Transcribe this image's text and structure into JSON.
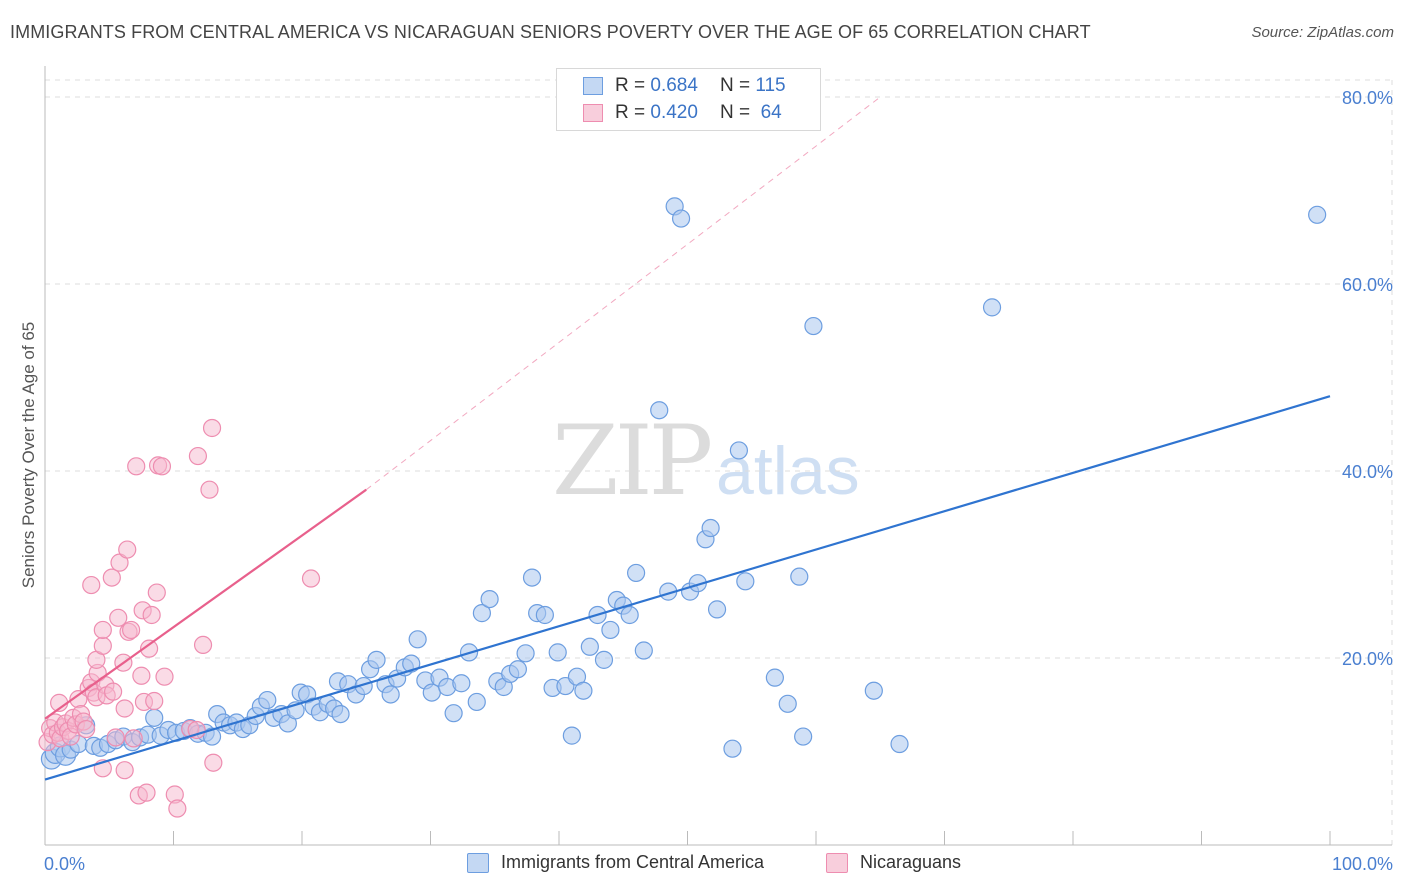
{
  "title": "IMMIGRANTS FROM CENTRAL AMERICA VS NICARAGUAN SENIORS POVERTY OVER THE AGE OF 65 CORRELATION CHART",
  "source": "Source: ZipAtlas.com",
  "watermark": {
    "zip": "ZIP",
    "atlas": "atlas"
  },
  "legend": {
    "rows": [
      {
        "r_label": "R =",
        "r_value": "0.684",
        "n_label": "N =",
        "n_value": "115"
      },
      {
        "r_label": "R =",
        "r_value": "0.420",
        "n_label": "N =",
        "n_value": "64"
      }
    ]
  },
  "bottom_legend": {
    "series1": "Immigrants from Central America",
    "series2": "Nicaraguans"
  },
  "colors": {
    "blue_fill": "#a9c7ef",
    "blue_stroke": "#6d9ee0",
    "blue_line": "#2f74d0",
    "pink_fill": "#f6b8cd",
    "pink_stroke": "#ee8db0",
    "pink_line": "#e8608c",
    "tick_text": "#4a7fd0",
    "grid": "#dddddd"
  },
  "chart_data": {
    "type": "scatter",
    "title": "IMMIGRANTS FROM CENTRAL AMERICA VS NICARAGUAN SENIORS POVERTY OVER THE AGE OF 65 CORRELATION CHART",
    "xlabel": "",
    "ylabel": "Seniors Poverty Over the Age of 65",
    "xlim": [
      0,
      100
    ],
    "ylim": [
      0,
      80
    ],
    "x_tick_labels": [
      "0.0%",
      "100.0%"
    ],
    "y_ticks": [
      20,
      40,
      60,
      80
    ],
    "y_tick_labels": [
      "20.0%",
      "40.0%",
      "60.0%",
      "80.0%"
    ],
    "grid": true,
    "legend_position": "top-center",
    "series": [
      {
        "name": "Immigrants from Central America",
        "r": 0.684,
        "n": 115,
        "trend": {
          "x0": 0,
          "y0": 7.0,
          "x1": 100,
          "y1": 48.0
        },
        "points": [
          [
            0.5,
            9.2
          ],
          [
            0.8,
            9.8
          ],
          [
            1.2,
            10.5
          ],
          [
            1.6,
            9.6
          ],
          [
            2.0,
            10.2
          ],
          [
            2.6,
            10.8
          ],
          [
            3.2,
            12.8
          ],
          [
            3.8,
            10.6
          ],
          [
            4.3,
            10.4
          ],
          [
            4.9,
            10.8
          ],
          [
            5.5,
            11.2
          ],
          [
            6.1,
            11.6
          ],
          [
            6.8,
            11.0
          ],
          [
            7.4,
            11.5
          ],
          [
            8.0,
            11.8
          ],
          [
            8.5,
            13.6
          ],
          [
            9.0,
            11.7
          ],
          [
            9.6,
            12.3
          ],
          [
            10.2,
            12.0
          ],
          [
            10.8,
            12.2
          ],
          [
            11.3,
            12.5
          ],
          [
            11.9,
            11.9
          ],
          [
            12.5,
            12.0
          ],
          [
            13.0,
            11.6
          ],
          [
            13.4,
            14.0
          ],
          [
            13.9,
            13.1
          ],
          [
            14.4,
            12.8
          ],
          [
            14.9,
            13.1
          ],
          [
            15.4,
            12.4
          ],
          [
            15.9,
            12.8
          ],
          [
            16.4,
            13.8
          ],
          [
            16.8,
            14.8
          ],
          [
            17.3,
            15.5
          ],
          [
            17.8,
            13.6
          ],
          [
            18.4,
            14.0
          ],
          [
            18.9,
            13.0
          ],
          [
            19.5,
            14.4
          ],
          [
            19.9,
            16.3
          ],
          [
            20.4,
            16.1
          ],
          [
            20.9,
            14.8
          ],
          [
            21.4,
            14.2
          ],
          [
            22.0,
            15.1
          ],
          [
            22.5,
            14.6
          ],
          [
            23.0,
            14.0
          ],
          [
            22.8,
            17.5
          ],
          [
            23.6,
            17.2
          ],
          [
            24.2,
            16.1
          ],
          [
            24.8,
            17.0
          ],
          [
            25.3,
            18.8
          ],
          [
            25.8,
            19.8
          ],
          [
            26.5,
            17.2
          ],
          [
            26.9,
            16.1
          ],
          [
            27.4,
            17.8
          ],
          [
            28.0,
            19.0
          ],
          [
            28.5,
            19.4
          ],
          [
            29.0,
            22.0
          ],
          [
            29.6,
            17.6
          ],
          [
            30.1,
            16.3
          ],
          [
            30.7,
            17.9
          ],
          [
            31.3,
            16.9
          ],
          [
            31.8,
            14.1
          ],
          [
            32.4,
            17.3
          ],
          [
            33.0,
            20.6
          ],
          [
            33.6,
            15.3
          ],
          [
            34.0,
            24.8
          ],
          [
            34.6,
            26.3
          ],
          [
            35.2,
            17.5
          ],
          [
            35.7,
            16.9
          ],
          [
            36.2,
            18.3
          ],
          [
            36.8,
            18.8
          ],
          [
            37.4,
            20.5
          ],
          [
            37.9,
            28.6
          ],
          [
            38.3,
            24.8
          ],
          [
            38.9,
            24.6
          ],
          [
            39.5,
            16.8
          ],
          [
            39.9,
            20.6
          ],
          [
            40.5,
            17.0
          ],
          [
            41.0,
            11.7
          ],
          [
            41.4,
            18.0
          ],
          [
            41.9,
            16.5
          ],
          [
            42.4,
            21.2
          ],
          [
            43.0,
            24.6
          ],
          [
            43.5,
            19.8
          ],
          [
            44.0,
            23.0
          ],
          [
            44.5,
            26.2
          ],
          [
            45.0,
            25.6
          ],
          [
            45.5,
            24.6
          ],
          [
            46.0,
            29.1
          ],
          [
            46.6,
            20.8
          ],
          [
            47.8,
            46.5
          ],
          [
            48.5,
            27.1
          ],
          [
            49.0,
            68.3
          ],
          [
            49.5,
            67.0
          ],
          [
            50.2,
            27.1
          ],
          [
            50.8,
            28.0
          ],
          [
            51.4,
            32.7
          ],
          [
            51.8,
            33.9
          ],
          [
            52.3,
            25.2
          ],
          [
            53.5,
            10.3
          ],
          [
            54.0,
            42.2
          ],
          [
            54.5,
            28.2
          ],
          [
            56.8,
            17.9
          ],
          [
            57.8,
            15.1
          ],
          [
            58.7,
            28.7
          ],
          [
            59.0,
            11.6
          ],
          [
            59.8,
            55.5
          ],
          [
            64.5,
            16.5
          ],
          [
            66.5,
            10.8
          ],
          [
            73.7,
            57.5
          ],
          [
            99.0,
            67.4
          ]
        ]
      },
      {
        "name": "Nicaraguans",
        "r": 0.42,
        "n": 64,
        "trend": {
          "x0": 0,
          "y0": 13.5,
          "x1": 25,
          "y1": 38.0
        },
        "trend_dashed_to": {
          "x": 65.0,
          "y": 80.0
        },
        "points": [
          [
            0.2,
            11.0
          ],
          [
            0.4,
            12.5
          ],
          [
            0.6,
            11.8
          ],
          [
            0.8,
            13.1
          ],
          [
            1.0,
            12.0
          ],
          [
            1.2,
            11.4
          ],
          [
            1.4,
            12.6
          ],
          [
            1.6,
            13.0
          ],
          [
            1.8,
            12.2
          ],
          [
            2.0,
            11.6
          ],
          [
            2.2,
            13.6
          ],
          [
            2.4,
            12.9
          ],
          [
            2.6,
            15.6
          ],
          [
            2.8,
            14.0
          ],
          [
            3.0,
            13.2
          ],
          [
            3.2,
            12.4
          ],
          [
            3.4,
            16.8
          ],
          [
            3.6,
            17.4
          ],
          [
            3.8,
            16.3
          ],
          [
            4.0,
            15.8
          ],
          [
            1.1,
            15.2
          ],
          [
            3.6,
            27.8
          ],
          [
            4.1,
            18.4
          ],
          [
            4.0,
            19.8
          ],
          [
            4.5,
            21.3
          ],
          [
            4.5,
            23.0
          ],
          [
            4.7,
            17.1
          ],
          [
            4.8,
            16.0
          ],
          [
            5.2,
            28.6
          ],
          [
            5.3,
            16.4
          ],
          [
            5.5,
            11.5
          ],
          [
            5.7,
            24.3
          ],
          [
            5.8,
            30.2
          ],
          [
            6.1,
            19.5
          ],
          [
            6.2,
            14.6
          ],
          [
            6.4,
            31.6
          ],
          [
            6.5,
            22.8
          ],
          [
            6.7,
            23.0
          ],
          [
            6.9,
            11.4
          ],
          [
            7.1,
            40.5
          ],
          [
            7.3,
            5.3
          ],
          [
            7.5,
            18.1
          ],
          [
            7.6,
            25.1
          ],
          [
            7.7,
            15.3
          ],
          [
            7.9,
            5.6
          ],
          [
            8.1,
            21.0
          ],
          [
            8.3,
            24.6
          ],
          [
            8.5,
            15.4
          ],
          [
            8.7,
            27.0
          ],
          [
            8.8,
            40.6
          ],
          [
            9.1,
            40.5
          ],
          [
            9.3,
            18.0
          ],
          [
            10.1,
            5.4
          ],
          [
            10.3,
            3.9
          ],
          [
            11.3,
            12.4
          ],
          [
            11.8,
            12.3
          ],
          [
            11.9,
            41.6
          ],
          [
            12.3,
            21.4
          ],
          [
            12.8,
            38.0
          ],
          [
            13.0,
            44.6
          ],
          [
            13.1,
            8.8
          ],
          [
            20.7,
            28.5
          ],
          [
            4.5,
            8.2
          ],
          [
            6.2,
            8.0
          ]
        ]
      }
    ]
  }
}
